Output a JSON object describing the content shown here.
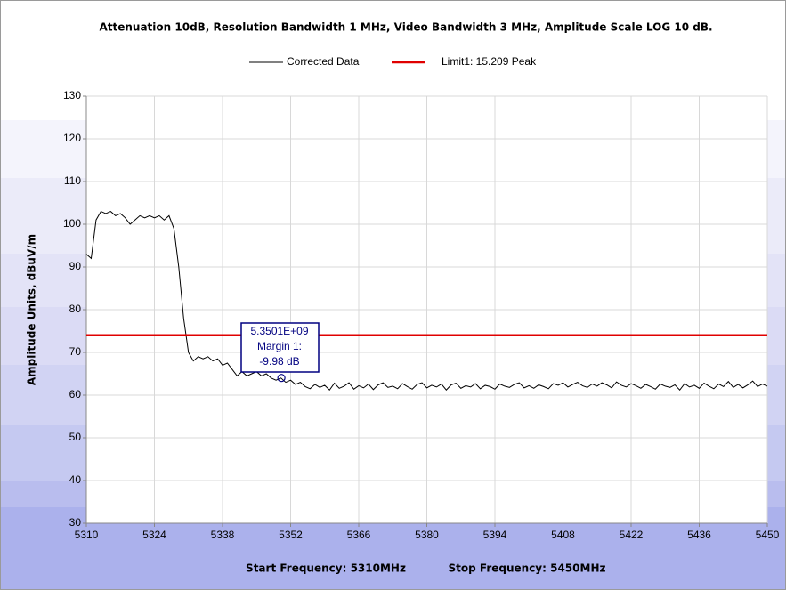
{
  "chart_data": {
    "type": "line",
    "title": "Attenuation 10dB, Resolution Bandwidth 1 MHz, Video Bandwidth 3 MHz, Amplitude Scale LOG 10 dB.",
    "ylabel": "Amplitude Units, dBuV/m",
    "footer": [
      "Start Frequency: 5310MHz",
      "Stop Frequency: 5450MHz"
    ],
    "xlim": [
      5310,
      5450
    ],
    "xticks": [
      5310,
      5324,
      5338,
      5352,
      5366,
      5380,
      5394,
      5408,
      5422,
      5436,
      5450
    ],
    "ylim": [
      30,
      130
    ],
    "yticks": [
      30,
      40,
      50,
      60,
      70,
      80,
      90,
      100,
      110,
      120,
      130
    ],
    "grid": true,
    "legend": "top",
    "series": [
      {
        "name": "Corrected Data",
        "color": "#000000",
        "x": [
          5310,
          5311,
          5312,
          5313,
          5314,
          5315,
          5316,
          5317,
          5318,
          5319,
          5320,
          5321,
          5322,
          5323,
          5324,
          5325,
          5326,
          5327,
          5328,
          5329,
          5330,
          5331,
          5332,
          5333,
          5334,
          5335,
          5336,
          5337,
          5338,
          5339,
          5340,
          5341,
          5342,
          5343,
          5344,
          5345,
          5346,
          5347,
          5348,
          5349,
          5350,
          5351,
          5352,
          5353,
          5354,
          5355,
          5356,
          5357,
          5358,
          5359,
          5360,
          5361,
          5362,
          5363,
          5364,
          5365,
          5366,
          5367,
          5368,
          5369,
          5370,
          5371,
          5372,
          5373,
          5374,
          5375,
          5376,
          5377,
          5378,
          5379,
          5380,
          5381,
          5382,
          5383,
          5384,
          5385,
          5386,
          5387,
          5388,
          5389,
          5390,
          5391,
          5392,
          5393,
          5394,
          5395,
          5396,
          5397,
          5398,
          5399,
          5400,
          5401,
          5402,
          5403,
          5404,
          5405,
          5406,
          5407,
          5408,
          5409,
          5410,
          5411,
          5412,
          5413,
          5414,
          5415,
          5416,
          5417,
          5418,
          5419,
          5420,
          5421,
          5422,
          5423,
          5424,
          5425,
          5426,
          5427,
          5428,
          5429,
          5430,
          5431,
          5432,
          5433,
          5434,
          5435,
          5436,
          5437,
          5438,
          5439,
          5440,
          5441,
          5442,
          5443,
          5444,
          5445,
          5446,
          5447,
          5448,
          5449,
          5450
        ],
        "values": [
          93,
          92,
          101,
          103,
          102.5,
          103,
          102,
          102.5,
          101.5,
          100,
          101,
          102,
          101.5,
          102,
          101.5,
          102,
          101,
          102,
          99,
          90,
          78,
          70,
          68,
          69,
          68.5,
          69,
          68,
          68.5,
          67,
          67.5,
          66,
          64.5,
          65.5,
          64.5,
          65,
          65.5,
          64.5,
          65,
          64,
          63.5,
          64,
          63,
          63.5,
          62.5,
          63,
          62,
          61.5,
          62.5,
          61.8,
          62.3,
          61.2,
          62.8,
          61.6,
          62.1,
          62.9,
          61.4,
          62.2,
          61.7,
          62.6,
          61.3,
          62.4,
          62.9,
          61.8,
          62.1,
          61.5,
          62.7,
          62.0,
          61.4,
          62.5,
          62.9,
          61.7,
          62.3,
          61.9,
          62.6,
          61.2,
          62.4,
          62.8,
          61.6,
          62.2,
          61.9,
          62.7,
          61.5,
          62.3,
          62.0,
          61.4,
          62.6,
          62.1,
          61.8,
          62.5,
          62.9,
          61.7,
          62.2,
          61.6,
          62.4,
          62.0,
          61.5,
          62.7,
          62.3,
          62.9,
          61.9,
          62.5,
          63.0,
          62.2,
          61.8,
          62.6,
          62.1,
          62.9,
          62.4,
          61.7,
          63.1,
          62.3,
          61.9,
          62.7,
          62.2,
          61.6,
          62.5,
          62.0,
          61.4,
          62.6,
          62.1,
          61.8,
          62.4,
          61.2,
          62.7,
          61.9,
          62.3,
          61.6,
          62.8,
          62.1,
          61.5,
          62.6,
          62.0,
          63.2,
          61.8,
          62.5,
          61.7,
          62.4,
          63.3,
          62.0,
          62.6,
          62.1
        ]
      },
      {
        "name": "Limit1: 15.209 Peak",
        "color": "#e00000",
        "x": [
          5310,
          5450
        ],
        "values": [
          74,
          74
        ]
      }
    ],
    "annotations": [
      {
        "lines": [
          "5.3501E+09",
          "Margin 1:",
          "-9.98 dB"
        ],
        "x": 5350.1,
        "y": 64.02,
        "color": "#000080"
      }
    ]
  }
}
